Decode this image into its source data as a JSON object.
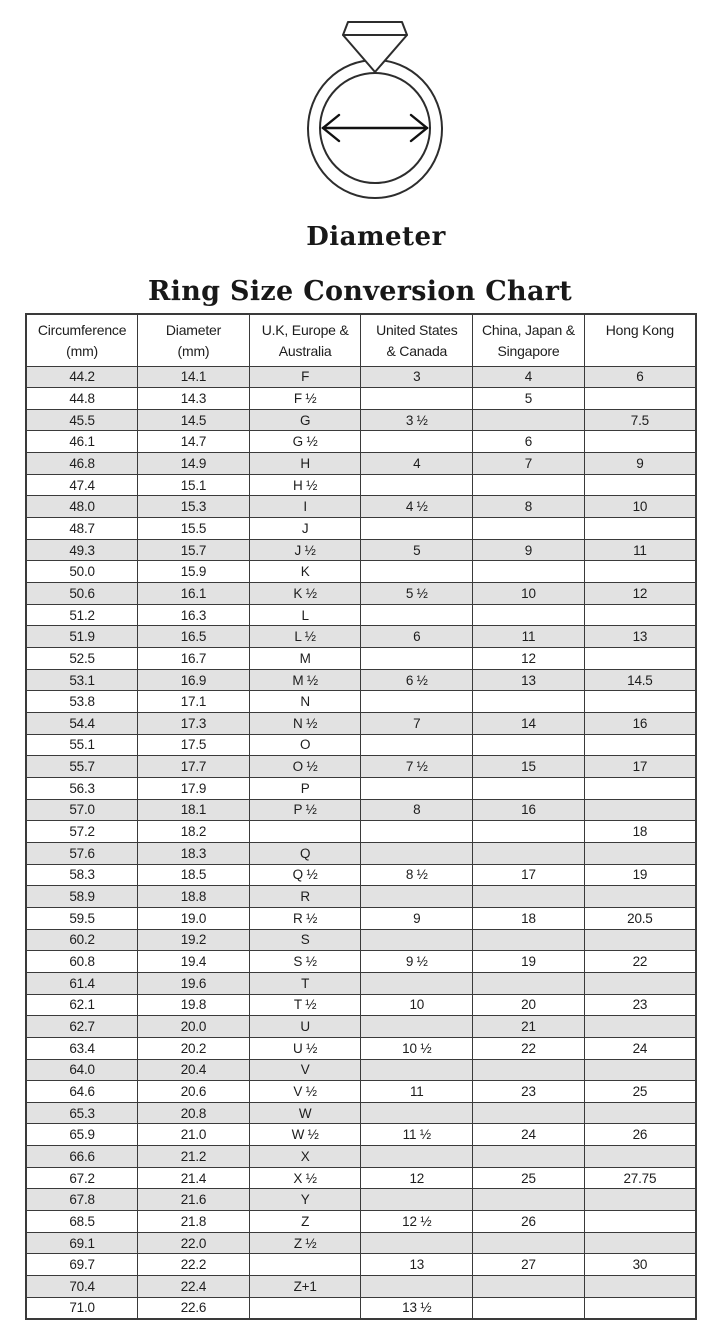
{
  "figure": {
    "label": "Diameter"
  },
  "title": "Ring Size Conversion Chart",
  "colors": {
    "row_alt": "#e2e2e2",
    "grid": "#3a3a3a",
    "text": "#1d1d1d",
    "stroke": "#2d2d2d"
  },
  "table": {
    "headers": [
      {
        "line1": "Circumference",
        "line2": "(mm)"
      },
      {
        "line1": "Diameter",
        "line2": "(mm)"
      },
      {
        "line1": "U.K, Europe &",
        "line2": "Australia"
      },
      {
        "line1": "United States",
        "line2": "& Canada"
      },
      {
        "line1": "China, Japan &",
        "line2": "Singapore"
      },
      {
        "line1": "Hong Kong",
        "line2": ""
      }
    ],
    "rows": [
      [
        "44.2",
        "14.1",
        "F",
        "3",
        "4",
        "6"
      ],
      [
        "44.8",
        "14.3",
        "F ½",
        "",
        "5",
        ""
      ],
      [
        "45.5",
        "14.5",
        "G",
        "3 ½",
        "",
        "7.5"
      ],
      [
        "46.1",
        "14.7",
        "G ½",
        "",
        "6",
        ""
      ],
      [
        "46.8",
        "14.9",
        "H",
        "4",
        "7",
        "9"
      ],
      [
        "47.4",
        "15.1",
        "H ½",
        "",
        "",
        ""
      ],
      [
        "48.0",
        "15.3",
        "I",
        "4 ½",
        "8",
        "10"
      ],
      [
        "48.7",
        "15.5",
        "J",
        "",
        "",
        ""
      ],
      [
        "49.3",
        "15.7",
        "J ½",
        "5",
        "9",
        "11"
      ],
      [
        "50.0",
        "15.9",
        "K",
        "",
        "",
        ""
      ],
      [
        "50.6",
        "16.1",
        "K ½",
        "5 ½",
        "10",
        "12"
      ],
      [
        "51.2",
        "16.3",
        "L",
        "",
        "",
        ""
      ],
      [
        "51.9",
        "16.5",
        "L ½",
        "6",
        "11",
        "13"
      ],
      [
        "52.5",
        "16.7",
        "M",
        "",
        "12",
        ""
      ],
      [
        "53.1",
        "16.9",
        "M ½",
        "6 ½",
        "13",
        "14.5"
      ],
      [
        "53.8",
        "17.1",
        "N",
        "",
        "",
        ""
      ],
      [
        "54.4",
        "17.3",
        "N ½",
        "7",
        "14",
        "16"
      ],
      [
        "55.1",
        "17.5",
        "O",
        "",
        "",
        ""
      ],
      [
        "55.7",
        "17.7",
        "O ½",
        "7 ½",
        "15",
        "17"
      ],
      [
        "56.3",
        "17.9",
        "P",
        "",
        "",
        ""
      ],
      [
        "57.0",
        "18.1",
        "P ½",
        "8",
        "16",
        ""
      ],
      [
        "57.2",
        "18.2",
        "",
        "",
        "",
        "18"
      ],
      [
        "57.6",
        "18.3",
        "Q",
        "",
        "",
        ""
      ],
      [
        "58.3",
        "18.5",
        "Q ½",
        "8 ½",
        "17",
        "19"
      ],
      [
        "58.9",
        "18.8",
        "R",
        "",
        "",
        ""
      ],
      [
        "59.5",
        "19.0",
        "R ½",
        "9",
        "18",
        "20.5"
      ],
      [
        "60.2",
        "19.2",
        "S",
        "",
        "",
        ""
      ],
      [
        "60.8",
        "19.4",
        "S ½",
        "9 ½",
        "19",
        "22"
      ],
      [
        "61.4",
        "19.6",
        "T",
        "",
        "",
        ""
      ],
      [
        "62.1",
        "19.8",
        "T ½",
        "10",
        "20",
        "23"
      ],
      [
        "62.7",
        "20.0",
        "U",
        "",
        "21",
        ""
      ],
      [
        "63.4",
        "20.2",
        "U ½",
        "10 ½",
        "22",
        "24"
      ],
      [
        "64.0",
        "20.4",
        "V",
        "",
        "",
        ""
      ],
      [
        "64.6",
        "20.6",
        "V ½",
        "11",
        "23",
        "25"
      ],
      [
        "65.3",
        "20.8",
        "W",
        "",
        "",
        ""
      ],
      [
        "65.9",
        "21.0",
        "W ½",
        "11 ½",
        "24",
        "26"
      ],
      [
        "66.6",
        "21.2",
        "X",
        "",
        "",
        ""
      ],
      [
        "67.2",
        "21.4",
        "X ½",
        "12",
        "25",
        "27.75"
      ],
      [
        "67.8",
        "21.6",
        "Y",
        "",
        "",
        ""
      ],
      [
        "68.5",
        "21.8",
        "Z",
        "12 ½",
        "26",
        ""
      ],
      [
        "69.1",
        "22.0",
        "Z ½",
        "",
        "",
        ""
      ],
      [
        "69.7",
        "22.2",
        "",
        "13",
        "27",
        "30"
      ],
      [
        "70.4",
        "22.4",
        "Z+1",
        "",
        "",
        ""
      ],
      [
        "71.0",
        "22.6",
        "",
        "13 ½",
        "",
        ""
      ]
    ]
  }
}
